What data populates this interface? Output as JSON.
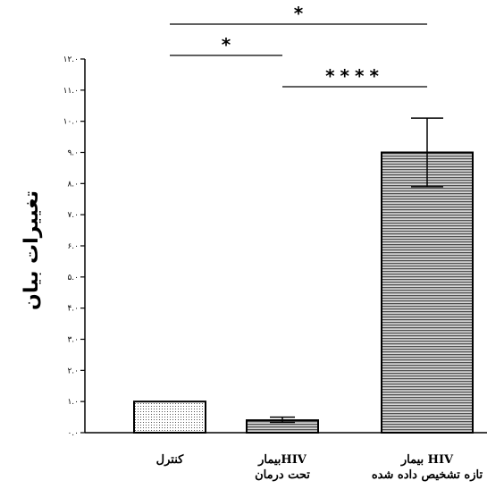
{
  "chart_data": {
    "type": "bar",
    "categories": [
      [
        "کنترل"
      ],
      [
        "بیمارHIV",
        "تحت درمان"
      ],
      [
        "بیمار HIV",
        "تازه تشخیص داده شده"
      ]
    ],
    "values": [
      1.0,
      0.4,
      9.0
    ],
    "error_bars": [
      {
        "low": 1.0,
        "high": 1.0
      },
      {
        "low": 0.33,
        "high": 0.5
      },
      {
        "low": 7.9,
        "high": 10.1
      }
    ],
    "fills": [
      "dotted",
      "horizontal-lines",
      "horizontal-lines"
    ],
    "ylabel": "تغییرات بیان",
    "ylim": [
      0,
      12
    ],
    "yticks": [
      {
        "value": 0,
        "label": "۰.۰"
      },
      {
        "value": 1,
        "label": "۱.۰"
      },
      {
        "value": 2,
        "label": "۲.۰"
      },
      {
        "value": 3,
        "label": "۳.۰"
      },
      {
        "value": 4,
        "label": "۴.۰"
      },
      {
        "value": 5,
        "label": "۵.۰"
      },
      {
        "value": 6,
        "label": "۶.۰"
      },
      {
        "value": 7,
        "label": "۷.۰"
      },
      {
        "value": 8,
        "label": "۸.۰"
      },
      {
        "value": 9,
        "label": "۹.۰"
      },
      {
        "value": 10,
        "label": "۱۰.۰"
      },
      {
        "value": 11,
        "label": "۱۱.۰"
      },
      {
        "value": 12,
        "label": "۱۲.۰"
      }
    ],
    "significance": [
      {
        "from": 0,
        "to": 2,
        "label": "*"
      },
      {
        "from": 0,
        "to": 1,
        "label": "*"
      },
      {
        "from": 1,
        "to": 2,
        "label": "****"
      }
    ],
    "grid": false
  }
}
